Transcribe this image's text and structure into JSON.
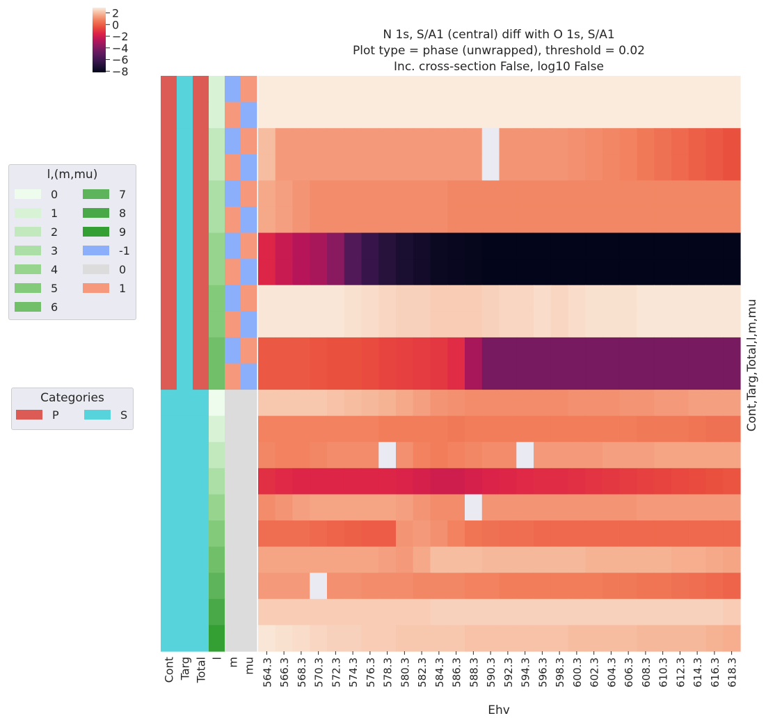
{
  "chart_data": {
    "type": "heatmap",
    "title": [
      "N 1s, S/A1 (central) diff with O 1s, S/A1",
      "Plot type = phase (unwrapped), threshold = 0.02",
      "Inc. cross-section False, log10 False"
    ],
    "xlabel": "Ehv",
    "ylabel": "Cont,Targ,Total,l,m,mu",
    "x": [
      "564.3",
      "566.3",
      "568.3",
      "570.3",
      "572.3",
      "574.3",
      "576.3",
      "578.3",
      "580.3",
      "582.3",
      "584.3",
      "586.3",
      "588.3",
      "590.3",
      "592.3",
      "594.3",
      "596.3",
      "598.3",
      "600.3",
      "602.3",
      "604.3",
      "606.3",
      "608.3",
      "610.3",
      "612.3",
      "614.3",
      "616.3",
      "618.3"
    ],
    "row_label_columns": [
      "Cont",
      "Targ",
      "Total",
      "l",
      "m",
      "mu"
    ],
    "rows": [
      {
        "cont": "P",
        "targ": "S",
        "total": "P",
        "l": "1",
        "m": "-1",
        "mu": "1"
      },
      {
        "cont": "P",
        "targ": "S",
        "total": "P",
        "l": "1",
        "m": "1",
        "mu": "-1"
      },
      {
        "cont": "P",
        "targ": "S",
        "total": "P",
        "l": "2",
        "m": "-1",
        "mu": "1"
      },
      {
        "cont": "P",
        "targ": "S",
        "total": "P",
        "l": "2",
        "m": "1",
        "mu": "-1"
      },
      {
        "cont": "P",
        "targ": "S",
        "total": "P",
        "l": "3",
        "m": "-1",
        "mu": "1"
      },
      {
        "cont": "P",
        "targ": "S",
        "total": "P",
        "l": "3",
        "m": "1",
        "mu": "-1"
      },
      {
        "cont": "P",
        "targ": "S",
        "total": "P",
        "l": "4",
        "m": "-1",
        "mu": "1"
      },
      {
        "cont": "P",
        "targ": "S",
        "total": "P",
        "l": "4",
        "m": "1",
        "mu": "-1"
      },
      {
        "cont": "P",
        "targ": "S",
        "total": "P",
        "l": "5",
        "m": "-1",
        "mu": "1"
      },
      {
        "cont": "P",
        "targ": "S",
        "total": "P",
        "l": "5",
        "m": "1",
        "mu": "-1"
      },
      {
        "cont": "P",
        "targ": "S",
        "total": "P",
        "l": "6",
        "m": "-1",
        "mu": "1"
      },
      {
        "cont": "P",
        "targ": "S",
        "total": "P",
        "l": "6",
        "m": "1",
        "mu": "-1"
      },
      {
        "cont": "S",
        "targ": "S",
        "total": "S",
        "l": "0",
        "m": "0",
        "mu": "0"
      },
      {
        "cont": "S",
        "targ": "S",
        "total": "S",
        "l": "1",
        "m": "0",
        "mu": "0"
      },
      {
        "cont": "S",
        "targ": "S",
        "total": "S",
        "l": "2",
        "m": "0",
        "mu": "0"
      },
      {
        "cont": "S",
        "targ": "S",
        "total": "S",
        "l": "3",
        "m": "0",
        "mu": "0"
      },
      {
        "cont": "S",
        "targ": "S",
        "total": "S",
        "l": "4",
        "m": "0",
        "mu": "0"
      },
      {
        "cont": "S",
        "targ": "S",
        "total": "S",
        "l": "5",
        "m": "0",
        "mu": "0"
      },
      {
        "cont": "S",
        "targ": "S",
        "total": "S",
        "l": "6",
        "m": "0",
        "mu": "0"
      },
      {
        "cont": "S",
        "targ": "S",
        "total": "S",
        "l": "7",
        "m": "0",
        "mu": "0"
      },
      {
        "cont": "S",
        "targ": "S",
        "total": "S",
        "l": "8",
        "m": "0",
        "mu": "0"
      },
      {
        "cont": "S",
        "targ": "S",
        "total": "S",
        "l": "9",
        "m": "0",
        "mu": "0"
      }
    ],
    "values": [
      [
        2.9,
        2.9,
        2.9,
        2.9,
        2.9,
        2.9,
        2.9,
        2.9,
        2.9,
        2.9,
        2.9,
        2.9,
        2.9,
        2.9,
        2.9,
        2.9,
        2.9,
        2.9,
        2.9,
        2.9,
        2.9,
        2.9,
        2.9,
        2.9,
        2.9,
        2.9,
        2.9,
        2.9
      ],
      [
        2.9,
        2.9,
        2.9,
        2.9,
        2.9,
        2.9,
        2.9,
        2.9,
        2.9,
        2.9,
        2.9,
        2.9,
        2.9,
        2.9,
        2.9,
        2.9,
        2.9,
        2.9,
        2.9,
        2.9,
        2.9,
        2.9,
        2.9,
        2.9,
        2.9,
        2.9,
        2.9,
        2.9
      ],
      [
        2.0,
        1.3,
        1.3,
        1.3,
        1.3,
        1.3,
        1.3,
        1.3,
        1.3,
        1.3,
        1.3,
        1.3,
        1.3,
        null,
        1.2,
        1.2,
        1.2,
        1.2,
        1.1,
        1.0,
        0.9,
        0.8,
        0.6,
        0.4,
        0.2,
        0.0,
        -0.2,
        -0.4
      ],
      [
        2.0,
        1.3,
        1.3,
        1.3,
        1.3,
        1.3,
        1.3,
        1.3,
        1.3,
        1.3,
        1.3,
        1.3,
        1.3,
        null,
        1.2,
        1.2,
        1.2,
        1.2,
        1.1,
        1.0,
        0.9,
        0.8,
        0.6,
        0.4,
        0.2,
        0.0,
        -0.2,
        -0.4
      ],
      [
        1.6,
        1.4,
        1.2,
        1.0,
        1.0,
        1.0,
        1.0,
        1.0,
        1.0,
        1.0,
        1.0,
        0.9,
        0.9,
        0.9,
        0.9,
        0.9,
        0.9,
        0.9,
        0.9,
        0.9,
        0.9,
        0.9,
        0.9,
        0.9,
        0.9,
        0.9,
        0.9,
        0.9
      ],
      [
        1.6,
        1.4,
        1.2,
        1.0,
        1.0,
        1.0,
        1.0,
        1.0,
        1.0,
        1.0,
        1.0,
        0.9,
        0.9,
        0.9,
        0.9,
        0.9,
        0.9,
        0.9,
        0.9,
        0.9,
        0.9,
        0.9,
        0.9,
        0.9,
        0.9,
        0.9,
        0.9,
        0.9
      ],
      [
        -1.5,
        -2.2,
        -2.7,
        -3.0,
        -3.8,
        -5.4,
        -6.3,
        -6.9,
        -7.3,
        -7.6,
        -7.9,
        -8.0,
        -8.1,
        -8.2,
        -8.2,
        -8.2,
        -8.2,
        -8.2,
        -8.2,
        -8.2,
        -8.2,
        -8.2,
        -8.2,
        -8.2,
        -8.2,
        -8.2,
        -8.2,
        -8.2
      ],
      [
        -1.5,
        -2.2,
        -2.7,
        -3.0,
        -3.8,
        -5.4,
        -6.3,
        -6.9,
        -7.3,
        -7.6,
        -7.9,
        -8.0,
        -8.1,
        -8.2,
        -8.2,
        -8.2,
        -8.2,
        -8.2,
        -8.2,
        -8.2,
        -8.2,
        -8.2,
        -8.2,
        -8.2,
        -8.2,
        -8.2,
        -8.2,
        -8.2
      ],
      [
        2.8,
        2.8,
        2.8,
        2.8,
        2.8,
        2.7,
        2.6,
        2.5,
        2.4,
        2.4,
        2.3,
        2.3,
        2.3,
        2.4,
        2.5,
        2.5,
        2.6,
        2.5,
        2.6,
        2.7,
        2.7,
        2.7,
        2.8,
        2.8,
        2.8,
        2.8,
        2.8,
        2.8
      ],
      [
        2.8,
        2.8,
        2.8,
        2.8,
        2.8,
        2.7,
        2.6,
        2.5,
        2.4,
        2.4,
        2.3,
        2.3,
        2.3,
        2.4,
        2.5,
        2.5,
        2.6,
        2.5,
        2.6,
        2.7,
        2.7,
        2.7,
        2.8,
        2.8,
        2.8,
        2.8,
        2.8,
        2.8
      ],
      [
        -0.2,
        -0.2,
        -0.2,
        -0.3,
        -0.4,
        -0.4,
        -0.5,
        -0.7,
        -0.8,
        -0.9,
        -1.0,
        -1.3,
        -3.0,
        -4.3,
        -4.3,
        -4.3,
        -4.3,
        -4.3,
        -4.3,
        -4.3,
        -4.3,
        -4.3,
        -4.3,
        -4.3,
        -4.3,
        -4.3,
        -4.3,
        -4.3
      ],
      [
        -0.2,
        -0.2,
        -0.2,
        -0.3,
        -0.4,
        -0.4,
        -0.5,
        -0.7,
        -0.8,
        -0.9,
        -1.0,
        -1.3,
        -3.0,
        -4.3,
        -4.3,
        -4.3,
        -4.3,
        -4.3,
        -4.3,
        -4.3,
        -4.3,
        -4.3,
        -4.3,
        -4.3,
        -4.3,
        -4.3,
        -4.3,
        -4.3
      ],
      [
        2.2,
        2.2,
        2.2,
        2.2,
        2.1,
        2.0,
        1.9,
        1.8,
        1.6,
        1.4,
        1.2,
        1.1,
        1.0,
        1.0,
        1.0,
        1.0,
        1.0,
        1.0,
        1.1,
        1.1,
        1.1,
        1.2,
        1.2,
        1.3,
        1.3,
        1.4,
        1.4,
        1.4
      ],
      [
        0.8,
        0.8,
        0.8,
        0.8,
        0.8,
        0.8,
        0.8,
        0.7,
        0.7,
        0.7,
        0.7,
        0.6,
        0.7,
        0.7,
        0.7,
        0.7,
        0.7,
        0.7,
        0.7,
        0.7,
        0.7,
        0.7,
        0.6,
        0.6,
        0.6,
        0.5,
        0.4,
        0.4
      ],
      [
        0.9,
        0.8,
        0.8,
        0.9,
        1.0,
        1.0,
        1.0,
        null,
        1.1,
        0.8,
        0.7,
        0.8,
        0.9,
        1.0,
        1.0,
        null,
        1.3,
        1.3,
        1.3,
        1.3,
        1.4,
        1.4,
        1.4,
        1.5,
        1.5,
        1.5,
        1.5,
        1.5
      ],
      [
        -1.2,
        -1.4,
        -1.5,
        -1.5,
        -1.5,
        -1.5,
        -1.5,
        -1.5,
        -1.6,
        -1.8,
        -2.0,
        -2.0,
        -1.8,
        -1.6,
        -1.5,
        -1.4,
        -1.3,
        -1.3,
        -1.2,
        -1.1,
        -1.0,
        -0.9,
        -0.8,
        -0.7,
        -0.6,
        -0.5,
        -0.4,
        -0.3
      ],
      [
        1.0,
        1.2,
        1.4,
        1.5,
        1.5,
        1.5,
        1.5,
        1.5,
        1.4,
        1.2,
        1.0,
        1.0,
        null,
        1.2,
        1.2,
        1.2,
        1.2,
        1.2,
        1.2,
        1.2,
        1.2,
        1.2,
        1.3,
        1.3,
        1.3,
        1.3,
        1.3,
        1.3
      ],
      [
        0.3,
        0.3,
        0.3,
        0.2,
        0.1,
        0.0,
        -0.1,
        -0.1,
        1.2,
        1.3,
        1.1,
        0.8,
        0.5,
        0.4,
        0.3,
        0.3,
        0.2,
        0.2,
        0.2,
        0.2,
        0.2,
        0.2,
        0.2,
        0.2,
        0.2,
        0.2,
        0.2,
        0.2
      ],
      [
        1.5,
        1.5,
        1.5,
        1.5,
        1.5,
        1.5,
        1.5,
        1.4,
        1.3,
        1.6,
        2.0,
        2.0,
        2.0,
        1.9,
        1.9,
        1.9,
        1.9,
        1.9,
        1.9,
        1.8,
        1.8,
        1.8,
        1.8,
        1.8,
        1.7,
        1.7,
        1.6,
        1.5
      ],
      [
        1.3,
        1.3,
        1.3,
        null,
        1.1,
        1.1,
        1.0,
        1.0,
        1.0,
        0.9,
        0.9,
        0.9,
        0.8,
        0.8,
        0.7,
        0.7,
        0.7,
        0.7,
        0.7,
        0.7,
        0.6,
        0.6,
        0.5,
        0.5,
        0.4,
        0.3,
        0.2,
        0.1
      ],
      [
        2.3,
        2.3,
        2.3,
        2.3,
        2.3,
        2.3,
        2.3,
        2.3,
        2.3,
        2.3,
        2.4,
        2.4,
        2.4,
        2.4,
        2.4,
        2.4,
        2.4,
        2.4,
        2.4,
        2.4,
        2.4,
        2.4,
        2.4,
        2.4,
        2.4,
        2.4,
        2.4,
        2.3
      ],
      [
        2.8,
        2.7,
        2.6,
        2.5,
        2.4,
        2.4,
        2.3,
        2.3,
        2.2,
        2.2,
        2.2,
        2.2,
        2.1,
        2.1,
        2.1,
        2.1,
        2.1,
        2.1,
        2.0,
        2.0,
        2.0,
        2.0,
        1.9,
        1.9,
        1.9,
        1.9,
        1.8,
        1.7
      ]
    ],
    "colorbar": {
      "vmin": -8.2,
      "vmax": 2.9,
      "ticks": [
        2,
        0,
        -2,
        -4,
        -6,
        -8
      ],
      "tick_labels": [
        "2",
        "0",
        "−2",
        "−4",
        "−6",
        "−8"
      ]
    },
    "legend_lmmu": {
      "title": "l,(m,mu)",
      "items": [
        {
          "label": "0",
          "color": "#edfcec"
        },
        {
          "label": "1",
          "color": "#d7f2d4"
        },
        {
          "label": "2",
          "color": "#c2e9bd"
        },
        {
          "label": "3",
          "color": "#acdfa6"
        },
        {
          "label": "4",
          "color": "#97d58f"
        },
        {
          "label": "5",
          "color": "#83ca7b"
        },
        {
          "label": "6",
          "color": "#71bf69"
        },
        {
          "label": "7",
          "color": "#5eb45a"
        },
        {
          "label": "8",
          "color": "#49a848"
        },
        {
          "label": "9",
          "color": "#34a034"
        },
        {
          "label": "-1",
          "color": "#8caffc"
        },
        {
          "label": "0",
          "color": "#dcdcdc"
        },
        {
          "label": "1",
          "color": "#f5987c"
        }
      ]
    },
    "legend_categories": {
      "title": "Categories",
      "items": [
        {
          "label": "P",
          "color": "#dc5c55"
        },
        {
          "label": "S",
          "color": "#57d3db"
        }
      ]
    },
    "missing_color": "#eaeaf2"
  }
}
